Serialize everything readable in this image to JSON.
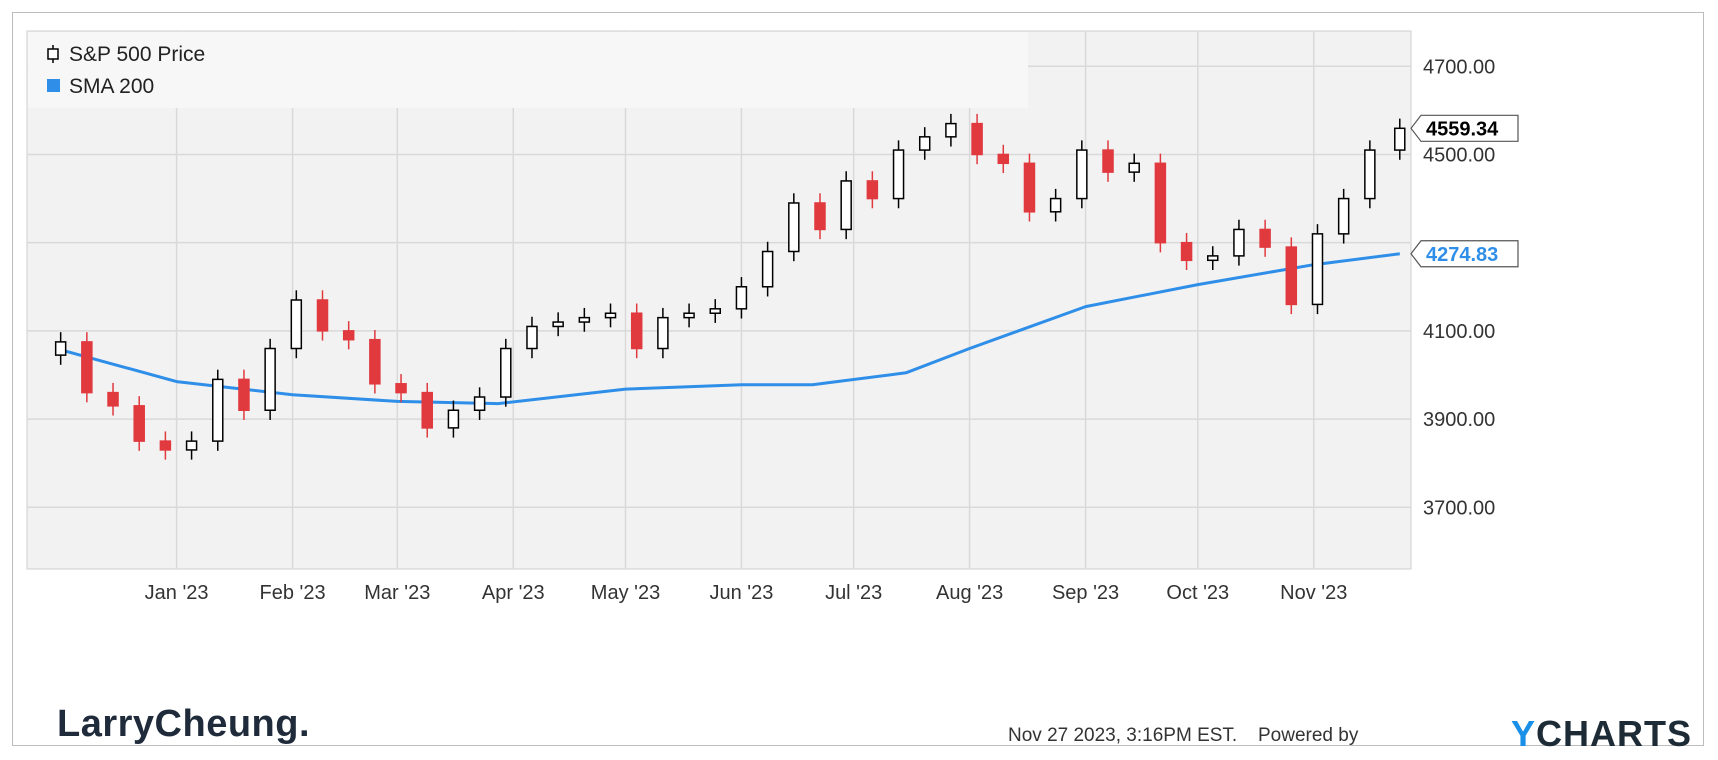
{
  "footer": {
    "brand": "LarryCheung.",
    "timestamp": "Nov 27 2023, 3:16PM EST.",
    "powered_by": "Powered by",
    "provider": "YCHARTS",
    "provider_initial": "Y",
    "provider_rest": "CHARTS"
  },
  "chart_data": {
    "type": "line",
    "title": "",
    "xlabel": "",
    "ylabel": "",
    "ylim": [
      3560,
      4780
    ],
    "y_ticks": [
      3700,
      3900,
      4100,
      4300,
      4500,
      4700
    ],
    "y_tick_labels": [
      "3700.00",
      "3900.00",
      "4100.00",
      "",
      "4500.00",
      "4700.00"
    ],
    "x_tick_labels": [
      "Jan '23",
      "Feb '23",
      "Mar '23",
      "Apr '23",
      "May '23",
      "Jun '23",
      "Jul '23",
      "Aug '23",
      "Sep '23",
      "Oct '23",
      "Nov '23"
    ],
    "grid": true,
    "legend": {
      "placement": "top-left",
      "entries": [
        "S&P 500 Price",
        "SMA 200"
      ]
    },
    "colors": {
      "up": "#000000",
      "down": "#e0393e",
      "sma": "#2f8fe8",
      "plot_bg": "#f2f2f2",
      "grid": "#d9d9d9"
    },
    "last_labels": {
      "price": "4559.34",
      "sma": "4274.83"
    },
    "series": [
      {
        "name": "S&P 500 Price",
        "kind": "close",
        "x": [
          "2022-12-01",
          "2022-12-08",
          "2022-12-15",
          "2022-12-22",
          "2022-12-29",
          "2023-01-05",
          "2023-01-12",
          "2023-01-19",
          "2023-01-26",
          "2023-02-02",
          "2023-02-09",
          "2023-02-16",
          "2023-02-23",
          "2023-03-02",
          "2023-03-09",
          "2023-03-16",
          "2023-03-23",
          "2023-03-30",
          "2023-04-06",
          "2023-04-13",
          "2023-04-20",
          "2023-04-27",
          "2023-05-04",
          "2023-05-11",
          "2023-05-18",
          "2023-05-25",
          "2023-06-01",
          "2023-06-08",
          "2023-06-15",
          "2023-06-22",
          "2023-06-29",
          "2023-07-06",
          "2023-07-13",
          "2023-07-20",
          "2023-07-27",
          "2023-08-03",
          "2023-08-10",
          "2023-08-17",
          "2023-08-24",
          "2023-08-31",
          "2023-09-07",
          "2023-09-14",
          "2023-09-21",
          "2023-09-28",
          "2023-10-05",
          "2023-10-12",
          "2023-10-19",
          "2023-10-26",
          "2023-11-02",
          "2023-11-09",
          "2023-11-16",
          "2023-11-24"
        ],
        "values": [
          4075,
          3960,
          3930,
          3850,
          3830,
          3850,
          3990,
          3920,
          4060,
          4170,
          4100,
          4080,
          3980,
          3960,
          3880,
          3920,
          3950,
          4060,
          4110,
          4120,
          4130,
          4140,
          4060,
          4130,
          4140,
          4150,
          4200,
          4280,
          4390,
          4330,
          4440,
          4400,
          4510,
          4540,
          4570,
          4500,
          4480,
          4370,
          4400,
          4510,
          4460,
          4480,
          4300,
          4260,
          4270,
          4330,
          4290,
          4160,
          4320,
          4400,
          4510,
          4559.34
        ]
      },
      {
        "name": "SMA 200",
        "kind": "moving-average",
        "x": [
          "2022-12-01",
          "2023-01-01",
          "2023-02-01",
          "2023-03-01",
          "2023-03-28",
          "2023-05-01",
          "2023-06-01",
          "2023-06-20",
          "2023-07-15",
          "2023-08-01",
          "2023-09-01",
          "2023-10-01",
          "2023-11-01",
          "2023-11-24"
        ],
        "values": [
          4057,
          3985,
          3955,
          3940,
          3935,
          3968,
          3978,
          3978,
          4005,
          4060,
          4155,
          4205,
          4250,
          4274.83
        ]
      }
    ]
  }
}
